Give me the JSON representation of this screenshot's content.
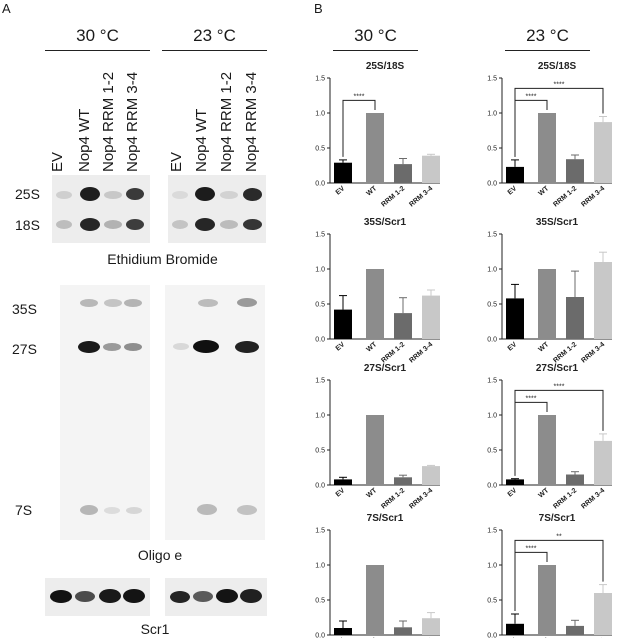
{
  "panel_a": {
    "letter": "A",
    "temps": [
      "30 °C",
      "23 °C"
    ],
    "lanes": [
      "EV",
      "Nop4 WT",
      "Nop4 RRM 1-2",
      "Nop4 RRM 3-4"
    ],
    "etbr_rows": [
      "25S",
      "18S"
    ],
    "etbr_caption": "Ethidium Bromide",
    "northern_rows": [
      "35S",
      "27S",
      "7S"
    ],
    "northern_caption": "Oligo e",
    "scr1_caption": "Scr1"
  },
  "panel_b": {
    "letter": "B",
    "temps": [
      "30 °C",
      "23 °C"
    ]
  },
  "chart_data": [
    {
      "type": "bar",
      "title": "25S/18S",
      "categories": [
        "EV",
        "WT",
        "RRM 1-2",
        "RRM 3-4"
      ],
      "values": [
        0.29,
        1.0,
        0.27,
        0.39
      ],
      "errors": [
        0.04,
        0.0,
        0.08,
        0.02
      ],
      "ylim": [
        0,
        1.5
      ],
      "yticks": [
        "0.0",
        "0.5",
        "1.0",
        "1.5"
      ],
      "colors": [
        "#000000",
        "#8c8c8c",
        "#6b6b6b",
        "#c8c8c8"
      ],
      "significance": [
        {
          "from": 0,
          "to": 1,
          "label": "****"
        }
      ]
    },
    {
      "type": "bar",
      "title": "25S/18S",
      "categories": [
        "EV",
        "WT",
        "RRM 1-2",
        "RRM 3-4"
      ],
      "values": [
        0.23,
        1.0,
        0.34,
        0.87
      ],
      "errors": [
        0.1,
        0.0,
        0.06,
        0.08
      ],
      "ylim": [
        0,
        1.5
      ],
      "yticks": [
        "0.0",
        "0.5",
        "1.0",
        "1.5"
      ],
      "colors": [
        "#000000",
        "#8c8c8c",
        "#6b6b6b",
        "#c8c8c8"
      ],
      "significance": [
        {
          "from": 0,
          "to": 1,
          "label": "****"
        },
        {
          "from": 0,
          "to": 3,
          "label": "****"
        }
      ]
    },
    {
      "type": "bar",
      "title": "35S/Scr1",
      "categories": [
        "EV",
        "WT",
        "RRM 1-2",
        "RRM 3-4"
      ],
      "values": [
        0.42,
        1.0,
        0.37,
        0.62
      ],
      "errors": [
        0.2,
        0.0,
        0.22,
        0.08
      ],
      "ylim": [
        0,
        1.5
      ],
      "yticks": [
        "0.0",
        "0.5",
        "1.0",
        "1.5"
      ],
      "colors": [
        "#000000",
        "#8c8c8c",
        "#6b6b6b",
        "#c8c8c8"
      ],
      "significance": []
    },
    {
      "type": "bar",
      "title": "35S/Scr1",
      "categories": [
        "EV",
        "WT",
        "RRM 1-2",
        "RRM 3-4"
      ],
      "values": [
        0.58,
        1.0,
        0.6,
        1.1
      ],
      "errors": [
        0.2,
        0.0,
        0.37,
        0.14
      ],
      "ylim": [
        0,
        1.5
      ],
      "yticks": [
        "0.0",
        "0.5",
        "1.0",
        "1.5"
      ],
      "colors": [
        "#000000",
        "#8c8c8c",
        "#6b6b6b",
        "#c8c8c8"
      ],
      "significance": []
    },
    {
      "type": "bar",
      "title": "27S/Scr1",
      "categories": [
        "EV",
        "WT",
        "RRM 1-2",
        "RRM 3-4"
      ],
      "values": [
        0.08,
        1.0,
        0.11,
        0.27
      ],
      "errors": [
        0.03,
        0.0,
        0.03,
        0.01
      ],
      "ylim": [
        0,
        1.5
      ],
      "yticks": [
        "0.0",
        "0.5",
        "1.0",
        "1.5"
      ],
      "colors": [
        "#000000",
        "#8c8c8c",
        "#6b6b6b",
        "#c8c8c8"
      ],
      "significance": []
    },
    {
      "type": "bar",
      "title": "27S/Scr1",
      "categories": [
        "EV",
        "WT",
        "RRM 1-2",
        "RRM 3-4"
      ],
      "values": [
        0.08,
        1.0,
        0.15,
        0.63
      ],
      "errors": [
        0.01,
        0.0,
        0.04,
        0.1
      ],
      "ylim": [
        0,
        1.5
      ],
      "yticks": [
        "0.0",
        "0.5",
        "1.0",
        "1.5"
      ],
      "colors": [
        "#000000",
        "#8c8c8c",
        "#6b6b6b",
        "#c8c8c8"
      ],
      "significance": [
        {
          "from": 0,
          "to": 1,
          "label": "****"
        },
        {
          "from": 0,
          "to": 3,
          "label": "****"
        }
      ]
    },
    {
      "type": "bar",
      "title": "7S/Scr1",
      "categories": [
        "EV",
        "WT",
        "RRM 1-2",
        "RRM 3-4"
      ],
      "values": [
        0.1,
        1.0,
        0.11,
        0.24
      ],
      "errors": [
        0.1,
        0.0,
        0.09,
        0.08
      ],
      "ylim": [
        0,
        1.5
      ],
      "yticks": [
        "0.0",
        "0.5",
        "1.0",
        "1.5"
      ],
      "colors": [
        "#000000",
        "#8c8c8c",
        "#6b6b6b",
        "#c8c8c8"
      ],
      "significance": []
    },
    {
      "type": "bar",
      "title": "7S/Scr1",
      "categories": [
        "EV",
        "WT",
        "RRM 1-2",
        "RRM 3-4"
      ],
      "values": [
        0.16,
        1.0,
        0.13,
        0.6
      ],
      "errors": [
        0.14,
        0.0,
        0.08,
        0.12
      ],
      "ylim": [
        0,
        1.5
      ],
      "yticks": [
        "0.0",
        "0.5",
        "1.0",
        "1.5"
      ],
      "colors": [
        "#000000",
        "#8c8c8c",
        "#6b6b6b",
        "#c8c8c8"
      ],
      "significance": [
        {
          "from": 0,
          "to": 1,
          "label": "****"
        },
        {
          "from": 0,
          "to": 3,
          "label": "**"
        }
      ]
    }
  ]
}
